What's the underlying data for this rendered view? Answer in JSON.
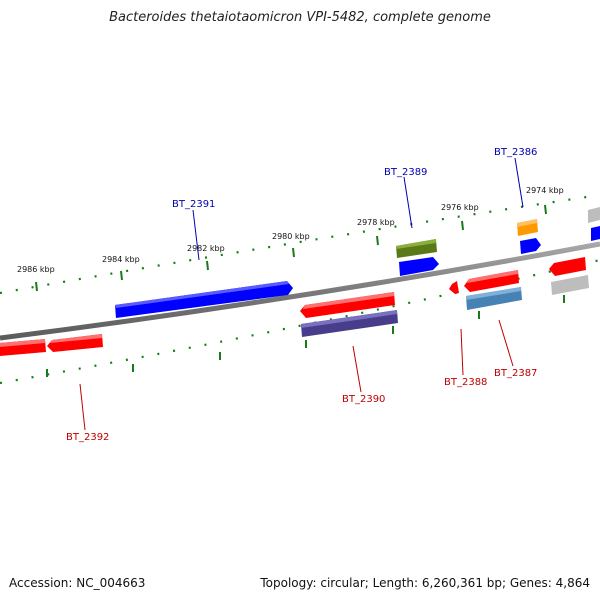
{
  "title": "Bacteroides thetaiotaomicron VPI-5482, complete genome",
  "footer": {
    "accession": "Accession: NC_004663",
    "summary": "Topology: circular; Length: 6,260,361 bp; Genes: 4,864"
  },
  "colors": {
    "backbone": "#808080",
    "tick": "#1a7a1a",
    "label_forward": "#0000b0",
    "label_reverse": "#c00000",
    "red": "#ff0000",
    "blue": "#0000ff",
    "olive": "#5a7a1a",
    "orange": "#ff9900",
    "steelblue": "#4682b4",
    "darkslateblue": "#483d8b",
    "gray": "#bdbdbd"
  },
  "ticks": [
    {
      "label": "2986 kbp"
    },
    {
      "label": "2984 kbp"
    },
    {
      "label": "2982 kbp"
    },
    {
      "label": "2980 kbp"
    },
    {
      "label": "2978 kbp"
    },
    {
      "label": "2976 kbp"
    },
    {
      "label": "2974 kbp"
    }
  ],
  "gene_labels": [
    {
      "label": "BT_2391",
      "strand": "forward"
    },
    {
      "label": "BT_2389",
      "strand": "forward"
    },
    {
      "label": "BT_2386",
      "strand": "forward"
    },
    {
      "label": "BT_2392",
      "strand": "reverse"
    },
    {
      "label": "BT_2390",
      "strand": "reverse"
    },
    {
      "label": "BT_2388",
      "strand": "reverse"
    },
    {
      "label": "BT_2387",
      "strand": "reverse"
    }
  ]
}
